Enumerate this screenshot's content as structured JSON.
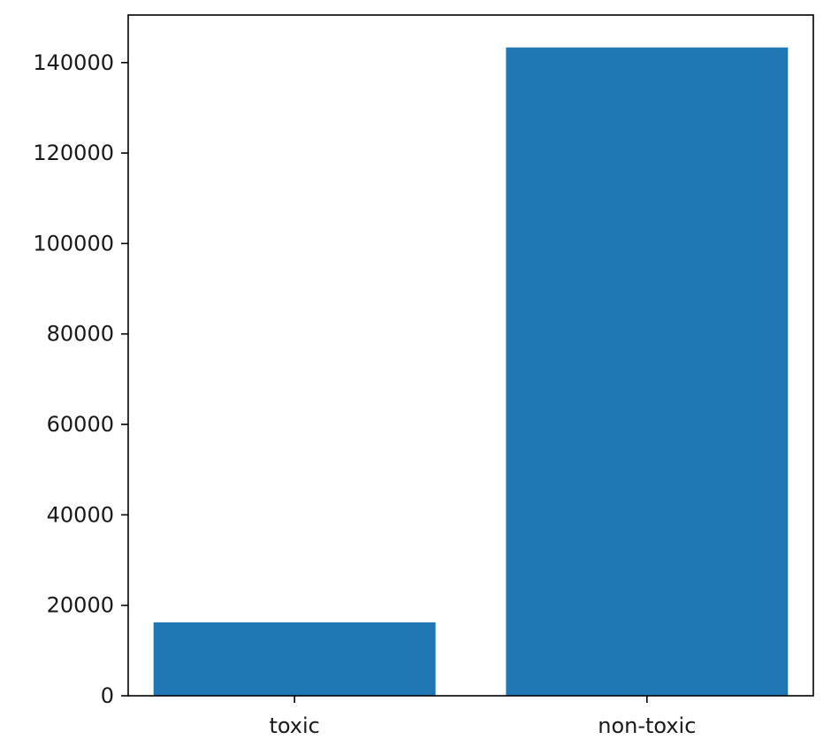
{
  "chart_data": {
    "type": "bar",
    "categories": [
      "toxic",
      "non-toxic"
    ],
    "values": [
      16225,
      143346
    ],
    "ylim": [
      0,
      150514
    ],
    "yticks": [
      0,
      20000,
      40000,
      60000,
      80000,
      100000,
      120000,
      140000
    ],
    "ytick_labels": [
      "0",
      "20000",
      "40000",
      "60000",
      "80000",
      "100000",
      "120000",
      "140000"
    ],
    "grid": false,
    "bar_color": "#1f77b4",
    "axes_color": "#000000",
    "text_color": "#1a1a1a"
  }
}
